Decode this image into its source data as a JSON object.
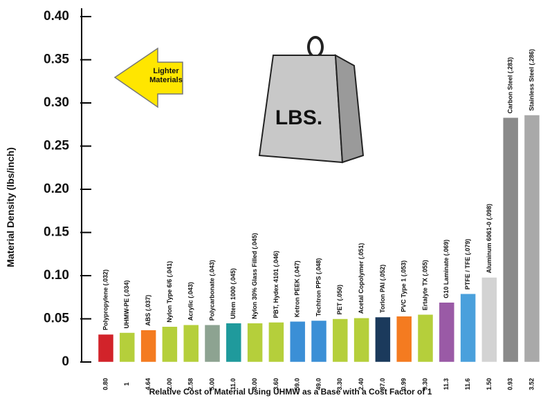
{
  "chart_data": {
    "type": "bar",
    "y_label": "Material Density  (lbs/inch)",
    "x_label": "Relative Cost of Material Using UHMW as a Base with a Cost Factor of 1",
    "annotations": [
      "Lighter Materials",
      "LBS."
    ],
    "categories": [
      "Polypropylene (.032)",
      "UHMW-PE (.034)",
      "ABS (.037)",
      "Nylon Type 6/6 (.041)",
      "Acrylic (.043)",
      "Polycarbonate (.043)",
      "Ultem 1000 (.045)",
      "Nylon 30% Glass Filled (.045)",
      "PBT, Hydex 4101 (.046)",
      "Ketron PEEK (.047)",
      "Techtron PPS (.048)",
      "PET (.050)",
      "Acetal Copolymer (.051)",
      "Torlon PAI (.052)",
      "PVC Type 1 (.053)",
      "Ertalyte TX (.055)",
      "G10 Laminate (.069)",
      "PTFE / TFE (.079)",
      "Aluminum 6061-0 (.098)",
      "Carbon Steel (.283)",
      "Stainless Steel (.286)"
    ],
    "cost_labels": [
      "0.80",
      "1",
      "4.64",
      "2.00",
      "2.58",
      "5.00",
      "11.0",
      "8.00",
      "3.60",
      "59.0",
      "49.0",
      "3.30",
      "2.40",
      "87.0",
      "0.99",
      "9.30",
      "11.3",
      "11.6",
      "1.50",
      "0.93",
      "3.52"
    ],
    "values": [
      0.032,
      0.034,
      0.037,
      0.041,
      0.043,
      0.043,
      0.045,
      0.045,
      0.046,
      0.047,
      0.048,
      0.05,
      0.051,
      0.052,
      0.053,
      0.055,
      0.069,
      0.079,
      0.098,
      0.283,
      0.286
    ],
    "colors": [
      "#d2232a",
      "#b5cf3b",
      "#f47b20",
      "#b5cf3b",
      "#b5cf3b",
      "#8da391",
      "#1f9a9c",
      "#b5cf3b",
      "#b5cf3b",
      "#3b8fd6",
      "#3b8fd6",
      "#b5cf3b",
      "#b5cf3b",
      "#1b3a5c",
      "#f47b20",
      "#b5cf3b",
      "#9a5aa6",
      "#4aa0dc",
      "#d3d3d3",
      "#8a8a8a",
      "#a9a9a9"
    ],
    "ylim": [
      0,
      0.4
    ],
    "yticks": [
      0,
      0.05,
      {
        "value": 0.1,
        "label": "0.10"
      },
      0.15,
      {
        "value": 0.2,
        "label": "0.20"
      },
      0.25,
      {
        "value": 0.3,
        "label": "0.30"
      },
      0.35,
      {
        "value": 0.4,
        "label": "0.40"
      }
    ]
  }
}
